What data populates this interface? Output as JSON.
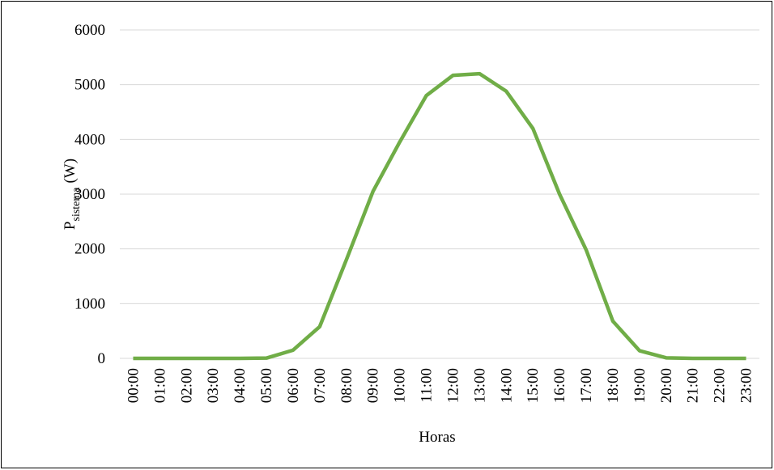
{
  "chart_data": {
    "type": "line",
    "x_label": "Horas",
    "y_label": {
      "main": "P",
      "subscript": "sistema",
      "unit": "(W)"
    },
    "categories": [
      "00:00",
      "01:00",
      "02:00",
      "03:00",
      "04:00",
      "05:00",
      "06:00",
      "07:00",
      "08:00",
      "09:00",
      "10:00",
      "11:00",
      "12:00",
      "13:00",
      "14:00",
      "15:00",
      "16:00",
      "17:00",
      "18:00",
      "19:00",
      "20:00",
      "21:00",
      "22:00",
      "23:00"
    ],
    "series": [
      {
        "name": "P",
        "color": "#70ad47",
        "values": [
          0,
          0,
          0,
          0,
          0,
          5,
          150,
          580,
          1800,
          3050,
          3950,
          4800,
          5170,
          5200,
          4880,
          4200,
          3000,
          1980,
          680,
          140,
          10,
          0,
          0,
          0
        ]
      }
    ],
    "ylim": [
      0,
      6000
    ],
    "yticks": [
      0,
      1000,
      2000,
      3000,
      4000,
      5000,
      6000
    ],
    "grid": true
  }
}
